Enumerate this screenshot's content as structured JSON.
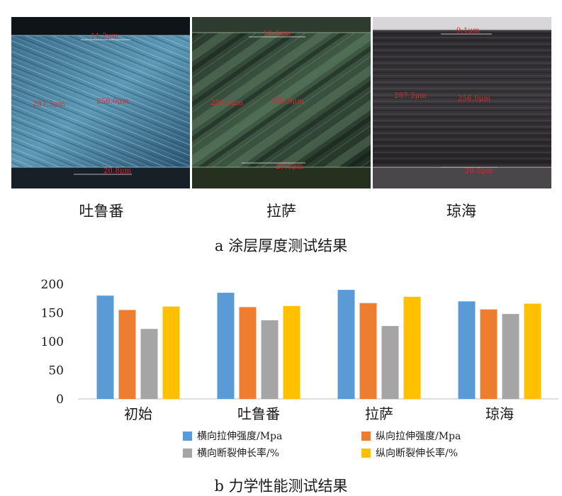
{
  "figure_a": {
    "panels": [
      {
        "caption": "吐鲁番",
        "labels": [
          "11.3μm",
          "287.5μm",
          "256.0μm",
          "20.8μm"
        ]
      },
      {
        "caption": "拉萨",
        "labels": [
          "10.4μm",
          "289.5μm",
          "258.9μm",
          "20.1μm"
        ]
      },
      {
        "caption": "琼海",
        "labels": [
          "9.1μm",
          "287.2μm",
          "256.0μm",
          "20.5μm"
        ]
      }
    ],
    "title": "a 涂层厚度测试结果"
  },
  "chart_data": {
    "type": "bar",
    "categories": [
      "初始",
      "吐鲁番",
      "拉萨",
      "琼海"
    ],
    "series": [
      {
        "name": "横向拉伸强度/Mpa",
        "color": "#5b9bd5",
        "values": [
          180,
          185,
          190,
          170
        ]
      },
      {
        "name": "纵向拉伸强度/Mpa",
        "color": "#ed7d31",
        "values": [
          155,
          160,
          167,
          156
        ]
      },
      {
        "name": "横向断裂伸长率/%",
        "color": "#a5a5a5",
        "values": [
          122,
          137,
          127,
          148
        ]
      },
      {
        "name": "纵向断裂伸长率/%",
        "color": "#ffc000",
        "values": [
          161,
          162,
          178,
          166
        ]
      }
    ],
    "ylim": [
      0,
      200
    ],
    "yticks": [
      0,
      50,
      100,
      150,
      200
    ],
    "grid": false,
    "legend_position": "bottom"
  },
  "figure_b": {
    "title": "b 力学性能测试结果"
  }
}
